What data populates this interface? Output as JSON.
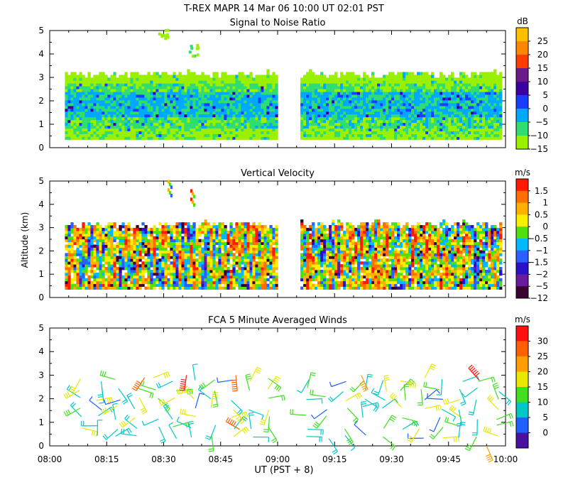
{
  "figure": {
    "title": "T-REX  MAPR 14 Mar 06  10:00 UT  02:01  PST",
    "ylabel": "Altitude (km)",
    "xlabel": "UT  (PST + 8)",
    "xticks": [
      "08:00",
      "08:15",
      "08:30",
      "08:45",
      "09:00",
      "09:15",
      "09:30",
      "09:45",
      "10:00"
    ],
    "yticks": [
      "0",
      "1",
      "2",
      "3",
      "4",
      "5"
    ]
  },
  "chart_data": [
    {
      "type": "heatmap",
      "title": "Signal to Noise Ratio",
      "xlim": [
        "08:00",
        "10:00"
      ],
      "ylim": [
        0,
        5
      ],
      "colorbar": {
        "unit": "dB",
        "labels": [
          "25",
          "20",
          "15",
          "10",
          "5",
          "0",
          "−5",
          "−10",
          "−15"
        ],
        "values": [
          25,
          20,
          15,
          10,
          5,
          0,
          -5,
          -10,
          -15
        ],
        "colors": [
          "#ffc000",
          "#ff8800",
          "#ff3c00",
          "#6a1a8a",
          "#3a00a0",
          "#1a3cff",
          "#00a8ff",
          "#30dd70",
          "#9af000"
        ]
      },
      "coverage": [
        {
          "start": "08:04",
          "end": "09:00",
          "bottom_km": 0.35,
          "top_km": 3.1
        },
        {
          "start": "09:06",
          "end": "09:59",
          "bottom_km": 0.35,
          "top_km": 3.1
        }
      ],
      "layers": [
        {
          "from_km": 0.35,
          "to_km": 0.8,
          "snr_db": -12
        },
        {
          "from_km": 0.8,
          "to_km": 1.2,
          "snr_db": -8
        },
        {
          "from_km": 1.2,
          "to_km": 2.3,
          "snr_db": -4
        },
        {
          "from_km": 2.3,
          "to_km": 2.7,
          "snr_db": -9
        },
        {
          "from_km": 2.7,
          "to_km": 3.1,
          "snr_db": -14
        }
      ],
      "patches": [
        {
          "x": "08:38",
          "y_km": 4.2,
          "snr_db": -9
        },
        {
          "x": "08:30",
          "y_km": 4.9,
          "snr_db": -14
        }
      ]
    },
    {
      "type": "heatmap",
      "title": "Vertical Velocity",
      "xlim": [
        "08:00",
        "10:00"
      ],
      "ylim": [
        0,
        5
      ],
      "colorbar": {
        "unit": "m/s",
        "labels": [
          "1.5",
          "1",
          "0.5",
          "0",
          "−0.5",
          "−1",
          "−1.5",
          "−2",
          "−5",
          "−12"
        ],
        "values": [
          1.5,
          1,
          0.5,
          0,
          -0.5,
          -1,
          -1.5,
          -2,
          -5,
          -12
        ],
        "colors": [
          "#ff1a00",
          "#ff7000",
          "#ffb000",
          "#f8f000",
          "#50e010",
          "#00b8ff",
          "#2a60ff",
          "#2a10c8",
          "#6a1a9a",
          "#3a0030"
        ]
      },
      "coverage": [
        {
          "start": "08:04",
          "end": "09:00",
          "bottom_km": 0.35,
          "top_km": 3.1
        },
        {
          "start": "09:06",
          "end": "09:59",
          "bottom_km": 0.35,
          "top_km": 3.1
        }
      ],
      "patches": [
        {
          "x": "08:31",
          "y_km": 4.7,
          "w_ms": 0.5
        },
        {
          "x": "08:37",
          "y_km": 4.3,
          "w_ms": 1.5
        }
      ]
    },
    {
      "type": "scatter",
      "title": "FCA 5 Minute Averaged Winds",
      "glyph": "wind barb",
      "xlim": [
        "08:00",
        "10:00"
      ],
      "ylim": [
        0,
        5
      ],
      "colorbar": {
        "unit": "m/s",
        "labels": [
          "30",
          "25",
          "20",
          "15",
          "10",
          "5",
          "0"
        ],
        "values": [
          30,
          25,
          20,
          15,
          10,
          5,
          0
        ],
        "colors": [
          "#ff1010",
          "#ff6000",
          "#ffa000",
          "#e8e800",
          "#40e020",
          "#00c8c8",
          "#2060ff",
          "#4a10a0"
        ]
      },
      "x_times": [
        "08:08",
        "08:13",
        "08:18",
        "08:23",
        "08:28",
        "08:33",
        "08:38",
        "08:43",
        "08:48",
        "08:53",
        "08:58",
        "09:08",
        "09:13",
        "09:18",
        "09:23",
        "09:28",
        "09:33",
        "09:38",
        "09:43",
        "09:48",
        "09:53",
        "09:58"
      ],
      "altitudes_km": [
        0.4,
        0.8,
        1.2,
        1.6,
        2.0,
        2.4,
        2.8
      ],
      "mean_speed_ms": 11,
      "highlights": [
        {
          "x": "08:25",
          "y_km": 2.9,
          "speed_ms": 25
        },
        {
          "x": "08:36",
          "y_km": 3.0,
          "speed_ms": 30
        },
        {
          "x": "08:49",
          "y_km": 3.0,
          "speed_ms": 28
        },
        {
          "x": "08:50",
          "y_km": 0.7,
          "speed_ms": 27
        },
        {
          "x": "09:22",
          "y_km": 3.0,
          "speed_ms": 24
        },
        {
          "x": "09:53",
          "y_km": 2.8,
          "speed_ms": 30
        },
        {
          "x": "09:55",
          "y_km": 0.0,
          "speed_ms": 22
        }
      ]
    }
  ]
}
